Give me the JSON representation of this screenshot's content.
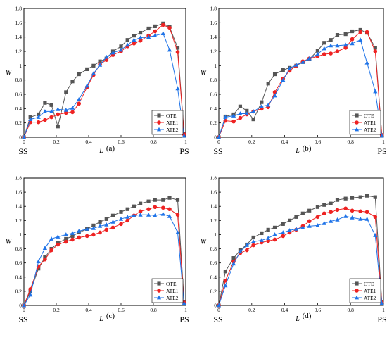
{
  "series_styles": [
    {
      "name": "OTE",
      "color": "#555555",
      "marker": "square"
    },
    {
      "name": "ATE1",
      "color": "#ee2222",
      "marker": "circle"
    },
    {
      "name": "ATE2",
      "color": "#1e73e8",
      "marker": "triangle"
    }
  ],
  "chart_data": [
    {
      "type": "line",
      "panel_label": "(a)",
      "xlabel": "L",
      "ylabel": "W",
      "xlim": [
        0,
        1
      ],
      "ylim": [
        0,
        1.8
      ],
      "xticks": [
        "0",
        "0.2",
        "0.4",
        "0.6",
        "0.8",
        "1"
      ],
      "yticks": [
        "0",
        "0.2",
        "0.4",
        "0.6",
        "0.8",
        "1",
        "1.2",
        "1.4",
        "1.6",
        "1.8"
      ],
      "side_labels": {
        "left": "SS",
        "right": "PS"
      },
      "legend": "bottom-right",
      "series": [
        {
          "name": "OTE",
          "x": [
            0,
            0.04,
            0.09,
            0.13,
            0.17,
            0.21,
            0.26,
            0.3,
            0.34,
            0.39,
            0.43,
            0.47,
            0.51,
            0.55,
            0.6,
            0.64,
            0.68,
            0.72,
            0.77,
            0.81,
            0.86,
            0.9,
            0.95,
            0.99
          ],
          "y": [
            0,
            0.28,
            0.32,
            0.48,
            0.45,
            0.15,
            0.63,
            0.78,
            0.88,
            0.95,
            1.0,
            1.06,
            1.1,
            1.2,
            1.27,
            1.36,
            1.42,
            1.46,
            1.52,
            1.55,
            1.59,
            1.54,
            1.25,
            0.05
          ]
        },
        {
          "name": "ATE1",
          "x": [
            0,
            0.04,
            0.09,
            0.13,
            0.17,
            0.21,
            0.26,
            0.3,
            0.34,
            0.39,
            0.43,
            0.47,
            0.51,
            0.55,
            0.6,
            0.64,
            0.68,
            0.72,
            0.77,
            0.81,
            0.86,
            0.9,
            0.95,
            0.99
          ],
          "y": [
            0,
            0.21,
            0.21,
            0.24,
            0.28,
            0.32,
            0.34,
            0.35,
            0.47,
            0.7,
            0.87,
            1.02,
            1.08,
            1.15,
            1.2,
            1.27,
            1.31,
            1.35,
            1.42,
            1.48,
            1.57,
            1.53,
            1.19,
            0.04
          ]
        },
        {
          "name": "ATE2",
          "x": [
            0,
            0.04,
            0.09,
            0.13,
            0.17,
            0.21,
            0.26,
            0.3,
            0.34,
            0.39,
            0.43,
            0.47,
            0.51,
            0.55,
            0.6,
            0.64,
            0.68,
            0.72,
            0.77,
            0.81,
            0.86,
            0.9,
            0.95,
            0.99
          ],
          "y": [
            0,
            0.25,
            0.28,
            0.36,
            0.36,
            0.39,
            0.38,
            0.41,
            0.53,
            0.72,
            0.89,
            1.01,
            1.12,
            1.18,
            1.22,
            1.29,
            1.36,
            1.39,
            1.4,
            1.42,
            1.45,
            1.22,
            0.68,
            0.02
          ]
        }
      ]
    },
    {
      "type": "line",
      "panel_label": "(b)",
      "xlabel": "L",
      "ylabel": "W",
      "xlim": [
        0,
        1
      ],
      "ylim": [
        0,
        1.8
      ],
      "xticks": [
        "0",
        "0.2",
        "0.4",
        "0.6",
        "0.8",
        "1"
      ],
      "yticks": [
        "0",
        "0.2",
        "0.4",
        "0.6",
        "0.8",
        "1",
        "1.2",
        "1.4",
        "1.6",
        "1.8"
      ],
      "side_labels": {
        "left": "SS",
        "right": "PS"
      },
      "legend": "bottom-right",
      "series": [
        {
          "name": "OTE",
          "x": [
            0,
            0.04,
            0.09,
            0.13,
            0.17,
            0.21,
            0.26,
            0.3,
            0.34,
            0.39,
            0.43,
            0.47,
            0.51,
            0.55,
            0.6,
            0.64,
            0.68,
            0.72,
            0.77,
            0.81,
            0.86,
            0.9,
            0.95,
            0.99
          ],
          "y": [
            0,
            0.29,
            0.32,
            0.43,
            0.37,
            0.25,
            0.49,
            0.75,
            0.88,
            0.94,
            0.97,
            1.0,
            1.05,
            1.09,
            1.21,
            1.32,
            1.36,
            1.43,
            1.44,
            1.48,
            1.5,
            1.46,
            1.25,
            0.03
          ]
        },
        {
          "name": "ATE1",
          "x": [
            0,
            0.04,
            0.09,
            0.13,
            0.17,
            0.21,
            0.26,
            0.3,
            0.34,
            0.39,
            0.43,
            0.47,
            0.51,
            0.55,
            0.6,
            0.64,
            0.68,
            0.72,
            0.77,
            0.81,
            0.86,
            0.9,
            0.95,
            0.99
          ],
          "y": [
            0,
            0.23,
            0.22,
            0.27,
            0.32,
            0.36,
            0.4,
            0.42,
            0.63,
            0.82,
            0.93,
            1.0,
            1.06,
            1.1,
            1.13,
            1.16,
            1.17,
            1.2,
            1.25,
            1.37,
            1.47,
            1.47,
            1.2,
            0.03
          ]
        },
        {
          "name": "ATE2",
          "x": [
            0,
            0.04,
            0.09,
            0.13,
            0.17,
            0.21,
            0.26,
            0.3,
            0.34,
            0.39,
            0.43,
            0.47,
            0.51,
            0.55,
            0.6,
            0.64,
            0.68,
            0.72,
            0.77,
            0.81,
            0.86,
            0.9,
            0.95,
            0.99
          ],
          "y": [
            0,
            0.28,
            0.3,
            0.33,
            0.33,
            0.36,
            0.43,
            0.45,
            0.58,
            0.8,
            0.96,
            1.01,
            1.05,
            1.1,
            1.16,
            1.24,
            1.28,
            1.28,
            1.29,
            1.31,
            1.36,
            1.04,
            0.64,
            0.02
          ]
        }
      ]
    },
    {
      "type": "line",
      "panel_label": "(c)",
      "xlabel": "L",
      "ylabel": "W",
      "xlim": [
        0,
        1
      ],
      "ylim": [
        0,
        1.8
      ],
      "xticks": [
        "0",
        "0.2",
        "0.4",
        "0.6",
        "0.8",
        "1"
      ],
      "yticks": [
        "0",
        "0.2",
        "0.4",
        "0.6",
        "0.8",
        "1",
        "1.2",
        "1.4",
        "1.6",
        "1.8"
      ],
      "side_labels": {
        "left": "SS",
        "right": "PS"
      },
      "legend": "bottom-right",
      "series": [
        {
          "name": "OTE",
          "x": [
            0,
            0.04,
            0.09,
            0.13,
            0.17,
            0.21,
            0.26,
            0.3,
            0.34,
            0.39,
            0.43,
            0.47,
            0.51,
            0.55,
            0.6,
            0.64,
            0.68,
            0.72,
            0.77,
            0.81,
            0.86,
            0.9,
            0.95,
            0.99
          ],
          "y": [
            0,
            0.2,
            0.52,
            0.68,
            0.8,
            0.88,
            0.94,
            0.98,
            1.03,
            1.08,
            1.13,
            1.18,
            1.22,
            1.27,
            1.32,
            1.36,
            1.4,
            1.44,
            1.47,
            1.49,
            1.49,
            1.52,
            1.49,
            0.05
          ]
        },
        {
          "name": "ATE1",
          "x": [
            0,
            0.04,
            0.09,
            0.13,
            0.17,
            0.21,
            0.26,
            0.3,
            0.34,
            0.39,
            0.43,
            0.47,
            0.51,
            0.55,
            0.6,
            0.64,
            0.68,
            0.72,
            0.77,
            0.81,
            0.86,
            0.9,
            0.95,
            0.99
          ],
          "y": [
            0,
            0.23,
            0.55,
            0.65,
            0.78,
            0.86,
            0.9,
            0.93,
            0.96,
            0.98,
            1.0,
            1.03,
            1.07,
            1.1,
            1.15,
            1.2,
            1.27,
            1.33,
            1.36,
            1.39,
            1.38,
            1.36,
            1.28,
            0.04
          ]
        },
        {
          "name": "ATE2",
          "x": [
            0,
            0.04,
            0.09,
            0.13,
            0.17,
            0.21,
            0.26,
            0.3,
            0.34,
            0.39,
            0.43,
            0.47,
            0.51,
            0.55,
            0.6,
            0.64,
            0.68,
            0.72,
            0.77,
            0.81,
            0.86,
            0.9,
            0.95,
            0.99
          ],
          "y": [
            0,
            0.15,
            0.62,
            0.81,
            0.94,
            0.97,
            1.0,
            1.02,
            1.05,
            1.08,
            1.09,
            1.12,
            1.14,
            1.18,
            1.22,
            1.25,
            1.27,
            1.28,
            1.28,
            1.27,
            1.29,
            1.26,
            1.03,
            0.03
          ]
        }
      ]
    },
    {
      "type": "line",
      "panel_label": "(d)",
      "xlabel": "L",
      "ylabel": "W",
      "xlim": [
        0,
        1
      ],
      "ylim": [
        0,
        1.8
      ],
      "xticks": [
        "0",
        "0.2",
        "0.4",
        "0.6",
        "0.8",
        "1"
      ],
      "yticks": [
        "0",
        "0.2",
        "0.4",
        "0.6",
        "0.8",
        "1",
        "1.2",
        "1.4",
        "1.6",
        "1.8"
      ],
      "side_labels": {
        "left": "SS",
        "right": "PS"
      },
      "legend": "bottom-right",
      "series": [
        {
          "name": "OTE",
          "x": [
            0,
            0.04,
            0.09,
            0.13,
            0.17,
            0.21,
            0.26,
            0.3,
            0.34,
            0.39,
            0.43,
            0.47,
            0.51,
            0.55,
            0.6,
            0.64,
            0.68,
            0.72,
            0.77,
            0.81,
            0.86,
            0.9,
            0.95,
            0.99
          ],
          "y": [
            0,
            0.48,
            0.67,
            0.78,
            0.86,
            0.96,
            1.02,
            1.07,
            1.1,
            1.15,
            1.2,
            1.25,
            1.3,
            1.34,
            1.39,
            1.42,
            1.44,
            1.49,
            1.51,
            1.52,
            1.53,
            1.55,
            1.53,
            0.05
          ]
        },
        {
          "name": "ATE1",
          "x": [
            0,
            0.04,
            0.09,
            0.13,
            0.17,
            0.21,
            0.26,
            0.3,
            0.34,
            0.39,
            0.43,
            0.47,
            0.51,
            0.55,
            0.6,
            0.64,
            0.68,
            0.72,
            0.77,
            0.81,
            0.86,
            0.9,
            0.95,
            0.99
          ],
          "y": [
            0,
            0.35,
            0.62,
            0.74,
            0.78,
            0.85,
            0.89,
            0.91,
            0.93,
            0.98,
            1.03,
            1.07,
            1.12,
            1.19,
            1.25,
            1.3,
            1.32,
            1.35,
            1.37,
            1.34,
            1.33,
            1.32,
            1.25,
            0.04
          ]
        },
        {
          "name": "ATE2",
          "x": [
            0,
            0.04,
            0.09,
            0.13,
            0.17,
            0.21,
            0.26,
            0.3,
            0.34,
            0.39,
            0.43,
            0.47,
            0.51,
            0.55,
            0.6,
            0.64,
            0.68,
            0.72,
            0.77,
            0.81,
            0.86,
            0.9,
            0.95,
            0.99
          ],
          "y": [
            0,
            0.28,
            0.59,
            0.76,
            0.85,
            0.9,
            0.92,
            0.95,
            1.0,
            1.03,
            1.06,
            1.08,
            1.1,
            1.12,
            1.13,
            1.16,
            1.19,
            1.21,
            1.26,
            1.24,
            1.22,
            1.22,
            0.99,
            0.03
          ]
        }
      ]
    }
  ]
}
